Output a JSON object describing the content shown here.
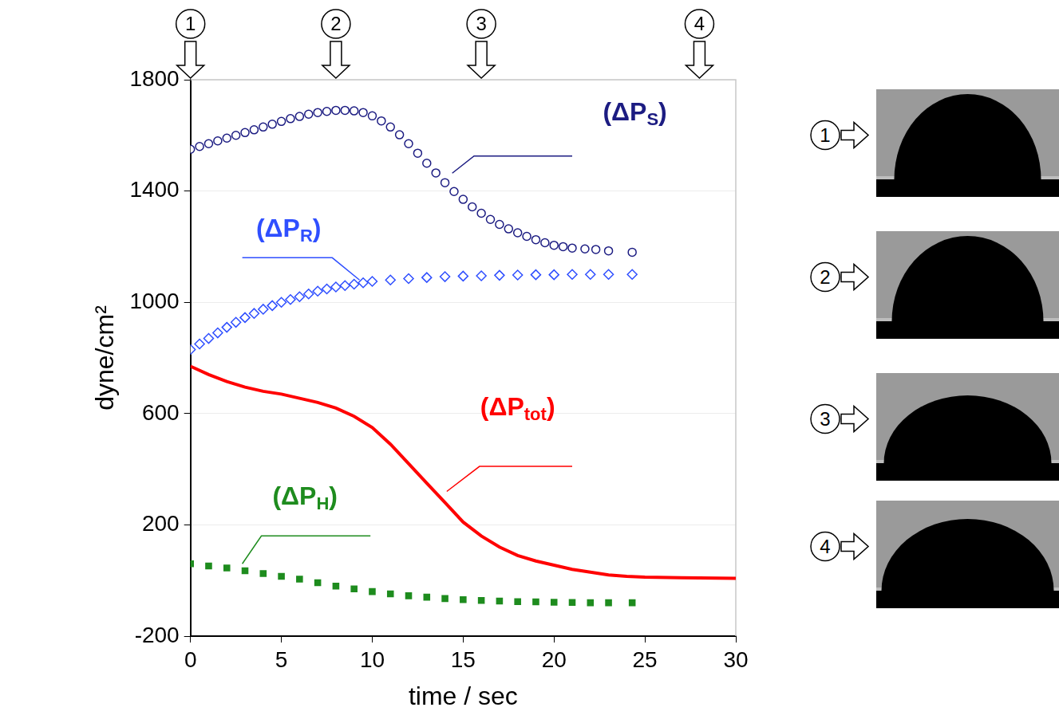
{
  "chart_data": {
    "type": "scatter",
    "x_label": "time / sec",
    "y_label": "dyne/cm²",
    "xlim": [
      0,
      30
    ],
    "xticks": [
      0,
      5,
      10,
      15,
      20,
      25,
      30
    ],
    "ylim": [
      -200,
      1800
    ],
    "yticks": [
      -200,
      200,
      600,
      1000,
      1400,
      1800
    ],
    "grid": true,
    "annotations": [
      {
        "x": 0,
        "text": "1"
      },
      {
        "x": 8,
        "text": "2"
      },
      {
        "x": 16,
        "text": "3"
      },
      {
        "x": 28,
        "text": "4"
      }
    ],
    "images": [
      {
        "label": "1"
      },
      {
        "label": "2"
      },
      {
        "label": "3"
      },
      {
        "label": "4"
      }
    ],
    "series": [
      {
        "name": "(ΔPS)",
        "color": "#1c1c82",
        "marker": "circle",
        "line_style": "none",
        "x": [
          0,
          0.5,
          1,
          1.5,
          2,
          2.5,
          3,
          3.5,
          4,
          4.5,
          5,
          5.5,
          6,
          6.5,
          7,
          7.5,
          8,
          8.5,
          9,
          9.5,
          10,
          10.5,
          11,
          11.5,
          12,
          12.5,
          13,
          13.5,
          14,
          14.5,
          15,
          15.5,
          16,
          16.5,
          17,
          17.5,
          18,
          18.5,
          19,
          19.5,
          20,
          20.5,
          21,
          21.7,
          22.3,
          23,
          24.3
        ],
        "values": [
          1550,
          1560,
          1570,
          1580,
          1590,
          1600,
          1610,
          1620,
          1630,
          1640,
          1650,
          1660,
          1668,
          1676,
          1682,
          1686,
          1690,
          1690,
          1688,
          1682,
          1670,
          1652,
          1630,
          1602,
          1570,
          1536,
          1500,
          1465,
          1430,
          1398,
          1370,
          1343,
          1320,
          1298,
          1280,
          1264,
          1250,
          1237,
          1225,
          1214,
          1205,
          1200,
          1195,
          1192,
          1190,
          1185,
          1180
        ]
      },
      {
        "name": "(ΔPR)",
        "color": "#2f4fff",
        "marker": "diamond",
        "line_style": "none",
        "x": [
          0,
          0.5,
          1,
          1.5,
          2,
          2.5,
          3,
          3.5,
          4,
          4.5,
          5,
          5.5,
          6,
          6.5,
          7,
          7.5,
          8,
          8.5,
          9,
          9.5,
          10,
          11,
          12,
          13,
          14,
          15,
          16,
          17,
          18,
          19,
          20,
          21,
          22,
          23,
          24.3
        ],
        "values": [
          830,
          850,
          870,
          890,
          910,
          928,
          945,
          960,
          975,
          988,
          1000,
          1010,
          1020,
          1030,
          1040,
          1048,
          1055,
          1060,
          1065,
          1070,
          1075,
          1080,
          1085,
          1089,
          1092,
          1094,
          1095,
          1097,
          1098,
          1099,
          1099,
          1100,
          1100,
          1100,
          1100
        ]
      },
      {
        "name": "(ΔPtot)",
        "color": "#ff0000",
        "marker": "none",
        "line_style": "solid",
        "x": [
          0,
          1,
          2,
          3,
          4,
          5,
          6,
          7,
          8,
          9,
          10,
          11,
          12,
          13,
          14,
          15,
          16,
          17,
          18,
          19,
          20,
          21,
          22,
          23,
          24,
          25,
          27,
          30
        ],
        "values": [
          770,
          740,
          715,
          695,
          680,
          670,
          655,
          640,
          620,
          590,
          550,
          490,
          420,
          350,
          280,
          210,
          160,
          120,
          90,
          70,
          55,
          40,
          30,
          20,
          15,
          12,
          10,
          8
        ]
      },
      {
        "name": "(ΔPH)",
        "color": "#1e8c1e",
        "marker": "square",
        "line_style": "none",
        "x": [
          0,
          1,
          2,
          3,
          4,
          5,
          6,
          7,
          8,
          9,
          10,
          11,
          12,
          13,
          14,
          15,
          16,
          17,
          18,
          19,
          20,
          21,
          22,
          23,
          24.3
        ],
        "values": [
          60,
          52,
          45,
          35,
          25,
          15,
          5,
          -8,
          -20,
          -30,
          -40,
          -48,
          -55,
          -60,
          -65,
          -69,
          -72,
          -74,
          -76,
          -77,
          -78,
          -79,
          -80,
          -80,
          -80
        ]
      }
    ]
  }
}
